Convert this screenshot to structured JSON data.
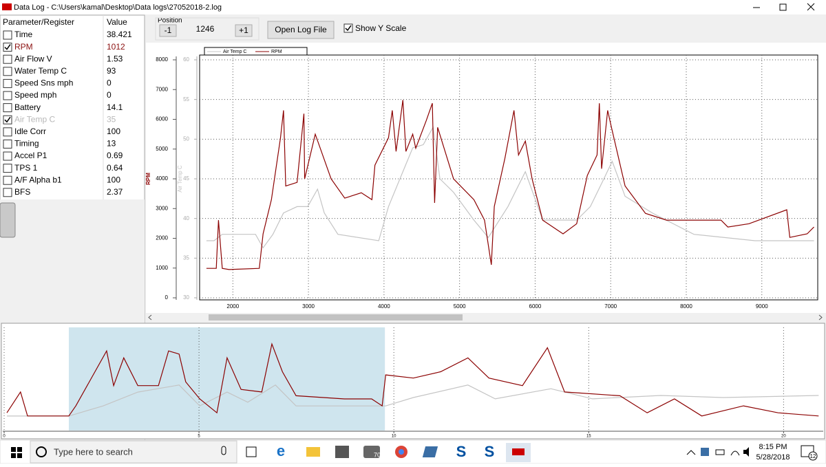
{
  "window": {
    "title": "Data Log - C:\\Users\\kamal\\Desktop\\Data logs\\27052018-2.log"
  },
  "table": {
    "headers": [
      "Parameter/Register",
      "Value"
    ],
    "rows": [
      {
        "name": "Time",
        "value": "38.421",
        "checked": false
      },
      {
        "name": "RPM",
        "value": "1012",
        "checked": true,
        "color": "#8b1010"
      },
      {
        "name": "Air Flow V",
        "value": "1.53",
        "checked": false
      },
      {
        "name": "Water Temp C",
        "value": "93",
        "checked": false
      },
      {
        "name": "Speed Sns mph",
        "value": "0",
        "checked": false
      },
      {
        "name": "Speed mph",
        "value": "0",
        "checked": false
      },
      {
        "name": "Battery",
        "value": "14.1",
        "checked": false
      },
      {
        "name": "Air Temp C",
        "value": "35",
        "checked": true,
        "color": "#b8b8b8"
      },
      {
        "name": "Idle Corr",
        "value": "100",
        "checked": false
      },
      {
        "name": "Timing",
        "value": "13",
        "checked": false
      },
      {
        "name": "Accel P1",
        "value": "0.69",
        "checked": false
      },
      {
        "name": "TPS 1",
        "value": "0.64",
        "checked": false
      },
      {
        "name": "A/F Alpha b1",
        "value": "100",
        "checked": false
      },
      {
        "name": "BFS",
        "value": "2.37",
        "checked": false
      }
    ]
  },
  "position": {
    "label": "Position",
    "minus": "-1",
    "value": "1246",
    "plus": "+1"
  },
  "open_button": "Open Log File",
  "show_y_scale": {
    "label": "Show Y Scale",
    "checked": true
  },
  "main_chart": {
    "type": "line",
    "y_label": "RPM",
    "y2_label": "Air Temp C",
    "xlim": [
      1560,
      9740
    ],
    "xticks": [
      2000,
      3000,
      4000,
      5000,
      6000,
      7000,
      8000,
      9000
    ],
    "ylim": [
      0,
      8000
    ],
    "yticks": [
      0,
      1000,
      2000,
      3000,
      4000,
      5000,
      6000,
      7000,
      8000
    ],
    "y2lim": [
      30,
      60
    ],
    "y2ticks": [
      30,
      35,
      40,
      45,
      50,
      55,
      60
    ],
    "grid": true,
    "legend": "top-left",
    "series": [
      {
        "name": "Air Temp C",
        "color": "#c4c4c4",
        "axis": "y2",
        "x": [
          1650,
          1750,
          1860,
          2300,
          2400,
          2530,
          2670,
          2850,
          2990,
          3120,
          3210,
          3390,
          3930,
          4060,
          4250,
          4380,
          4520,
          4650,
          4740,
          4920,
          5190,
          5380,
          5640,
          5870,
          6100,
          6550,
          6730,
          6910,
          7020,
          7190,
          7550,
          8100,
          8910,
          9690
        ],
        "values": [
          37.2,
          37.2,
          38,
          38,
          36.3,
          38,
          40.7,
          41.5,
          41.5,
          43.7,
          40.7,
          38,
          37.2,
          41.5,
          45.9,
          48.9,
          49.3,
          51.5,
          45,
          43.3,
          39.8,
          37.6,
          41.5,
          45.9,
          39.8,
          39.8,
          41.5,
          45,
          47.2,
          42.8,
          40.7,
          38,
          37.2,
          37.2
        ]
      },
      {
        "name": "RPM",
        "color": "#8b0000",
        "x": [
          1650,
          1780,
          1810,
          1860,
          1950,
          2350,
          2400,
          2510,
          2630,
          2670,
          2700,
          2850,
          2940,
          2950,
          3090,
          3300,
          3480,
          3700,
          3840,
          3880,
          4060,
          4110,
          4160,
          4250,
          4290,
          4380,
          4420,
          4560,
          4640,
          4670,
          4710,
          4920,
          5190,
          5330,
          5420,
          5460,
          5600,
          5720,
          5780,
          5870,
          5960,
          6100,
          6370,
          6550,
          6690,
          6820,
          6850,
          6880,
          6960,
          7010,
          7190,
          7460,
          7740,
          8010,
          8460,
          8550,
          8830,
          9330,
          9370,
          9600,
          9690
        ],
        "values": [
          990,
          990,
          2610,
          990,
          950,
          990,
          2150,
          3300,
          5380,
          6300,
          3760,
          3880,
          6190,
          4000,
          5500,
          4000,
          3350,
          3530,
          3300,
          4460,
          5380,
          6300,
          4920,
          6650,
          4920,
          5500,
          5030,
          5960,
          6540,
          3190,
          5730,
          4000,
          3300,
          2610,
          1110,
          3070,
          4690,
          6300,
          4800,
          5270,
          4000,
          2610,
          2150,
          2490,
          4110,
          4800,
          6540,
          4340,
          6300,
          5730,
          3760,
          2840,
          2610,
          2610,
          2610,
          2380,
          2490,
          2960,
          2030,
          2150,
          2380
        ]
      }
    ]
  },
  "overview_chart": {
    "type": "line",
    "xlim": [
      0,
      21
    ],
    "xticks": [
      0,
      5,
      10,
      15,
      20
    ],
    "ylim": [
      0,
      8000
    ],
    "y2lim": [
      30,
      60
    ],
    "selection": [
      1.66,
      9.77
    ],
    "selection_color": "#cfe5ee",
    "series": [
      {
        "color": "#c4c4c4",
        "axis": "y2",
        "x": [
          0.07,
          1.66,
          2.54,
          3.43,
          4.49,
          5.02,
          5.72,
          6.25,
          6.96,
          7.49,
          9.79,
          10.5,
          11.9,
          12.6,
          14.03,
          15.1,
          16.85,
          18.45,
          20.9
        ],
        "values": [
          34.1,
          34.1,
          37.1,
          41.2,
          43.3,
          37.1,
          41.2,
          38.2,
          43.3,
          37.1,
          37.1,
          39.6,
          43.3,
          39.2,
          42.2,
          39.2,
          40.2,
          39.6,
          40.2
        ]
      },
      {
        "color": "#8b0000",
        "x": [
          0.07,
          0.42,
          0.6,
          1.66,
          1.84,
          2.63,
          2.81,
          3.07,
          3.43,
          3.96,
          4.22,
          4.49,
          4.66,
          5.02,
          5.46,
          5.72,
          6.08,
          6.61,
          6.87,
          7.14,
          7.49,
          8.73,
          9.43,
          9.7,
          9.79,
          10.5,
          11.2,
          11.9,
          12.44,
          13.3,
          13.94,
          14.38,
          15.8,
          16.5,
          17.2,
          17.9,
          18.97,
          19.86,
          20.9
        ],
        "values": [
          1350,
          3000,
          1100,
          1100,
          1900,
          6250,
          3500,
          5700,
          3500,
          3500,
          6250,
          6000,
          3800,
          2450,
          1350,
          5700,
          3200,
          3000,
          6800,
          4600,
          2700,
          2450,
          2450,
          1900,
          4350,
          4100,
          4600,
          5700,
          4100,
          3500,
          6500,
          3000,
          2700,
          1350,
          2450,
          1100,
          1900,
          1350,
          1100
        ]
      }
    ]
  },
  "taskbar": {
    "search": "Type here to search",
    "badge": "70",
    "time": "8:15 PM",
    "date": "5/28/2018",
    "notifications": "12"
  }
}
